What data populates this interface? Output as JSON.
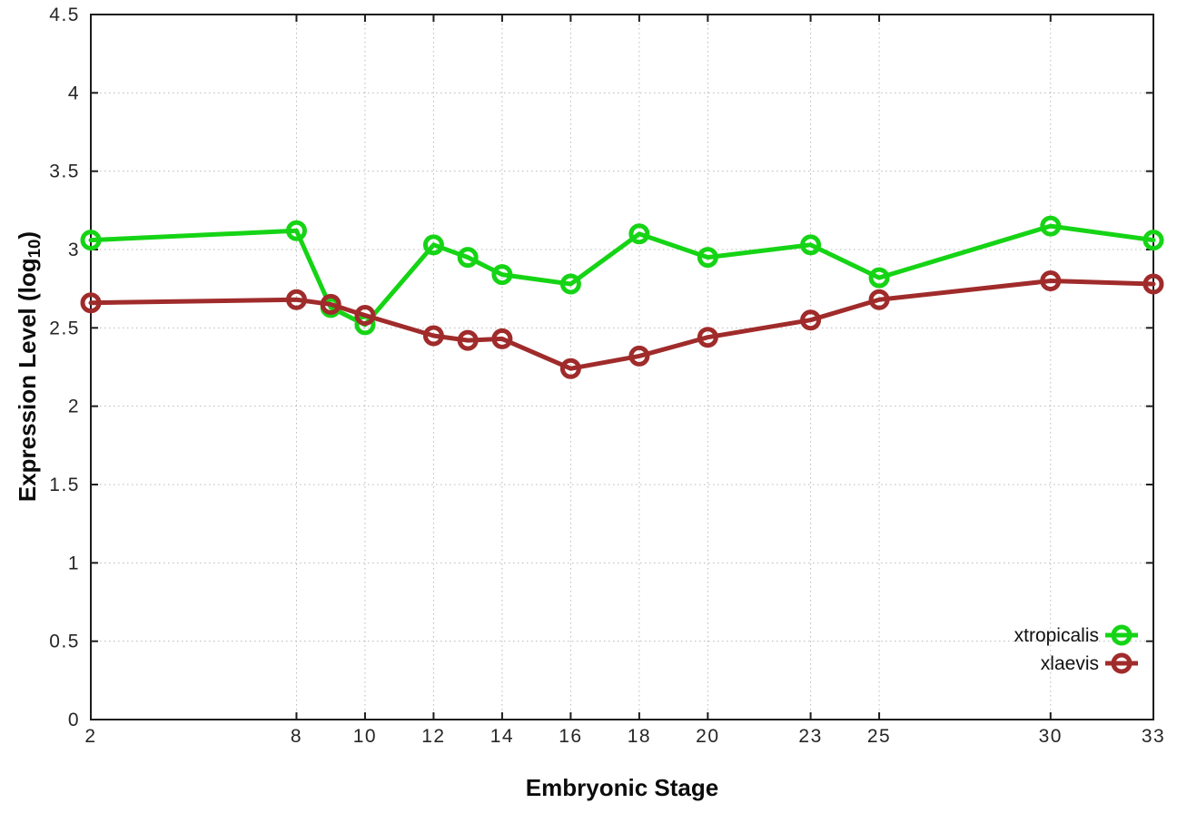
{
  "chart_data": {
    "type": "line",
    "title": "",
    "xlabel": "Embryonic Stage",
    "ylabel": {
      "prefix": "Expression Level (log",
      "subscript": "10",
      "suffix": ")"
    },
    "xlim": [
      2,
      33
    ],
    "ylim": [
      0,
      4.5
    ],
    "grid": true,
    "legend_position": "bottom-right",
    "xticks": [
      2,
      8,
      10,
      12,
      14,
      16,
      18,
      20,
      23,
      25,
      30,
      33
    ],
    "ytick_labels": [
      "0",
      "0.5",
      "1",
      "1.5",
      "2",
      "2.5",
      "3",
      "3.5",
      "4",
      "4.5"
    ],
    "yticks": [
      0,
      0.5,
      1,
      1.5,
      2,
      2.5,
      3,
      3.5,
      4,
      4.5
    ],
    "x": [
      2,
      8,
      9,
      10,
      12,
      13,
      14,
      16,
      18,
      20,
      23,
      25,
      30,
      33
    ],
    "series": [
      {
        "name": "xtropicalis",
        "color": "#15d415",
        "values": [
          3.06,
          3.12,
          2.63,
          2.52,
          3.03,
          2.95,
          2.84,
          2.78,
          3.1,
          2.95,
          3.03,
          2.82,
          3.15,
          3.06
        ]
      },
      {
        "name": "xlaevis",
        "color": "#a02b2b",
        "values": [
          2.66,
          2.68,
          2.65,
          2.58,
          2.45,
          2.42,
          2.43,
          2.24,
          2.32,
          2.44,
          2.55,
          2.68,
          2.8,
          2.78
        ]
      }
    ],
    "style": {
      "border_color": "#1c1c1c",
      "grid_color": "#b8b8b8",
      "tick_label_color": "#262626",
      "line_width": 5,
      "marker_radius": 9,
      "marker_stroke": 5
    }
  }
}
